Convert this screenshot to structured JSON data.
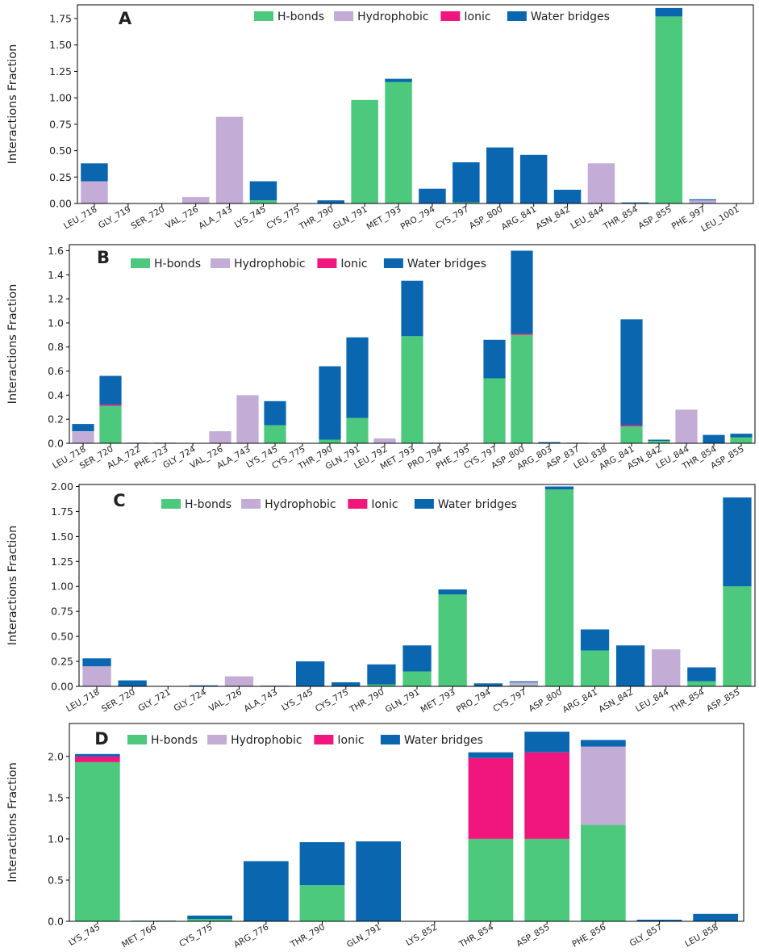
{
  "colors": {
    "hbonds": "#4cc97c",
    "hydrophobic": "#c3acd6",
    "ionic": "#f0167e",
    "water": "#0b66b0"
  },
  "legend_labels": [
    "H-bonds",
    "Hydrophobic",
    "Ionic",
    "Water bridges"
  ],
  "chart_data": [
    {
      "type": "bar",
      "panel_label": "A",
      "ylabel": "Interactions Fraction",
      "ylim": [
        0,
        1.88
      ],
      "yticks": [
        "0.00",
        "0.25",
        "0.50",
        "0.75",
        "1.00",
        "1.25",
        "1.50",
        "1.75"
      ],
      "legend_position": "top",
      "categories": [
        "LEU_718",
        "GLY_719",
        "SER_720",
        "VAL_726",
        "ALA_743",
        "LYS_745",
        "CYS_775",
        "THR_790",
        "GLN_791",
        "MET_793",
        "PRO_794",
        "CYS_797",
        "ASP_800",
        "ARG_841",
        "ASN_842",
        "LEU_844",
        "THR_854",
        "ASP_855",
        "PHE_997",
        "LEU_1001"
      ],
      "series": [
        {
          "name": "H-bonds",
          "values": [
            0,
            0,
            0,
            0,
            0,
            0.03,
            0,
            0,
            0.98,
            1.15,
            0,
            0.01,
            0,
            0,
            0,
            0,
            0,
            1.77,
            0,
            0
          ]
        },
        {
          "name": "Hydrophobic",
          "values": [
            0.21,
            0,
            0,
            0.06,
            0.82,
            0,
            0,
            0,
            0,
            0,
            0,
            0,
            0,
            0,
            0,
            0.38,
            0,
            0,
            0.03,
            0
          ]
        },
        {
          "name": "Ionic",
          "values": [
            0,
            0,
            0,
            0,
            0,
            0,
            0,
            0,
            0,
            0,
            0,
            0,
            0,
            0,
            0,
            0,
            0,
            0,
            0,
            0
          ]
        },
        {
          "name": "Water bridges",
          "values": [
            0.17,
            0,
            0,
            0,
            0,
            0.18,
            0,
            0.03,
            0,
            0.03,
            0.14,
            0.38,
            0.53,
            0.46,
            0.13,
            0,
            0.01,
            0.08,
            0.01,
            0
          ]
        }
      ]
    },
    {
      "type": "bar",
      "panel_label": "B",
      "ylabel": "Interactions Fraction",
      "ylim": [
        0,
        1.65
      ],
      "yticks": [
        "0.0",
        "0.2",
        "0.4",
        "0.6",
        "0.8",
        "1.0",
        "1.2",
        "1.4",
        "1.6"
      ],
      "legend_position": "top",
      "categories": [
        "LEU_718",
        "SER_720",
        "ALA_722",
        "PHE_723",
        "GLY_724",
        "VAL_726",
        "ALA_743",
        "LYS_745",
        "CYS_775",
        "THR_790",
        "GLN_791",
        "LEU_792",
        "MET_793",
        "PRO_794",
        "PHE_795",
        "CYS_797",
        "ASP_800",
        "ARG_803",
        "ASP_837",
        "LEU_838",
        "ARG_841",
        "ASN_842",
        "LEU_844",
        "THR_854",
        "ASP_855"
      ],
      "series": [
        {
          "name": "H-bonds",
          "values": [
            0,
            0.31,
            0,
            0,
            0,
            0,
            0,
            0.15,
            0,
            0.03,
            0.21,
            0,
            0.89,
            0,
            0,
            0.54,
            0.9,
            0,
            0,
            0,
            0.14,
            0.02,
            0,
            0,
            0.05
          ]
        },
        {
          "name": "Hydrophobic",
          "values": [
            0.1,
            0,
            0,
            0,
            0,
            0.1,
            0.4,
            0,
            0,
            0,
            0,
            0.04,
            0,
            0,
            0,
            0,
            0,
            0,
            0,
            0,
            0,
            0,
            0.28,
            0,
            0
          ]
        },
        {
          "name": "Ionic",
          "values": [
            0,
            0.01,
            0,
            0,
            0,
            0,
            0,
            0,
            0,
            0,
            0,
            0,
            0,
            0,
            0,
            0,
            0.01,
            0,
            0,
            0,
            0.01,
            0,
            0,
            0,
            0
          ]
        },
        {
          "name": "Water bridges",
          "values": [
            0.06,
            0.24,
            0.005,
            0.005,
            0,
            0,
            0,
            0.2,
            0,
            0.61,
            0.67,
            0,
            0.46,
            0.005,
            0,
            0.32,
            0.69,
            0.01,
            0.005,
            0,
            0.88,
            0.01,
            0,
            0.07,
            0.03
          ]
        }
      ]
    },
    {
      "type": "bar",
      "panel_label": "C",
      "ylabel": "Interactions Fraction",
      "ylim": [
        0,
        2.02
      ],
      "yticks": [
        "0.00",
        "0.25",
        "0.50",
        "0.75",
        "1.00",
        "1.25",
        "1.50",
        "1.75",
        "2.00"
      ],
      "legend_position": "top",
      "categories": [
        "LEU_718",
        "SER_720",
        "GLY_721",
        "GLY_724",
        "VAL_726",
        "ALA_743",
        "LYS_745",
        "CYS_775",
        "THR_790",
        "GLN_791",
        "MET_793",
        "PRO_794",
        "CYS_797",
        "ASP_800",
        "ARG_841",
        "ASN_842",
        "LEU_844",
        "THR_854",
        "ASP_855"
      ],
      "series": [
        {
          "name": "H-bonds",
          "values": [
            0,
            0,
            0,
            0,
            0,
            0,
            0,
            0,
            0.02,
            0.15,
            0.92,
            0,
            0.01,
            1.97,
            0.36,
            0,
            0,
            0.05,
            1.0
          ]
        },
        {
          "name": "Hydrophobic",
          "values": [
            0.2,
            0,
            0,
            0,
            0.1,
            0.01,
            0,
            0,
            0,
            0,
            0,
            0,
            0.03,
            0,
            0,
            0,
            0.37,
            0,
            0
          ]
        },
        {
          "name": "Ionic",
          "values": [
            0,
            0,
            0,
            0,
            0,
            0,
            0,
            0,
            0,
            0,
            0,
            0,
            0,
            0,
            0,
            0,
            0,
            0,
            0
          ]
        },
        {
          "name": "Water bridges",
          "values": [
            0.08,
            0.06,
            0,
            0.01,
            0,
            0,
            0.25,
            0.04,
            0.2,
            0.26,
            0.05,
            0.03,
            0.01,
            0.03,
            0.21,
            0.41,
            0,
            0.14,
            0.89
          ]
        }
      ]
    },
    {
      "type": "bar",
      "panel_label": "D",
      "ylabel": "Interactions Fraction",
      "ylim": [
        0,
        2.4
      ],
      "yticks": [
        "0.0",
        "0.5",
        "1.0",
        "1.5",
        "2.0"
      ],
      "legend_position": "top",
      "categories": [
        "LYS_745",
        "MET_766",
        "CYS_775",
        "ARG_776",
        "THR_790",
        "GLN_791",
        "LYS_852",
        "THR_854",
        "ASP_855",
        "PHE_856",
        "GLY_857",
        "LEU_858"
      ],
      "series": [
        {
          "name": "H-bonds",
          "values": [
            1.93,
            0.01,
            0.03,
            0,
            0.44,
            0,
            0,
            1.0,
            1.0,
            1.17,
            0,
            0
          ]
        },
        {
          "name": "Hydrophobic",
          "values": [
            0,
            0,
            0,
            0,
            0,
            0,
            0,
            0,
            0,
            0.95,
            0,
            0
          ]
        },
        {
          "name": "Ionic",
          "values": [
            0.07,
            0,
            0,
            0,
            0,
            0,
            0,
            0.98,
            1.05,
            0,
            0,
            0
          ]
        },
        {
          "name": "Water bridges",
          "values": [
            0.03,
            0,
            0.04,
            0.73,
            0.52,
            0.97,
            0,
            0.07,
            0.25,
            0.08,
            0.02,
            0.09
          ]
        }
      ]
    }
  ]
}
